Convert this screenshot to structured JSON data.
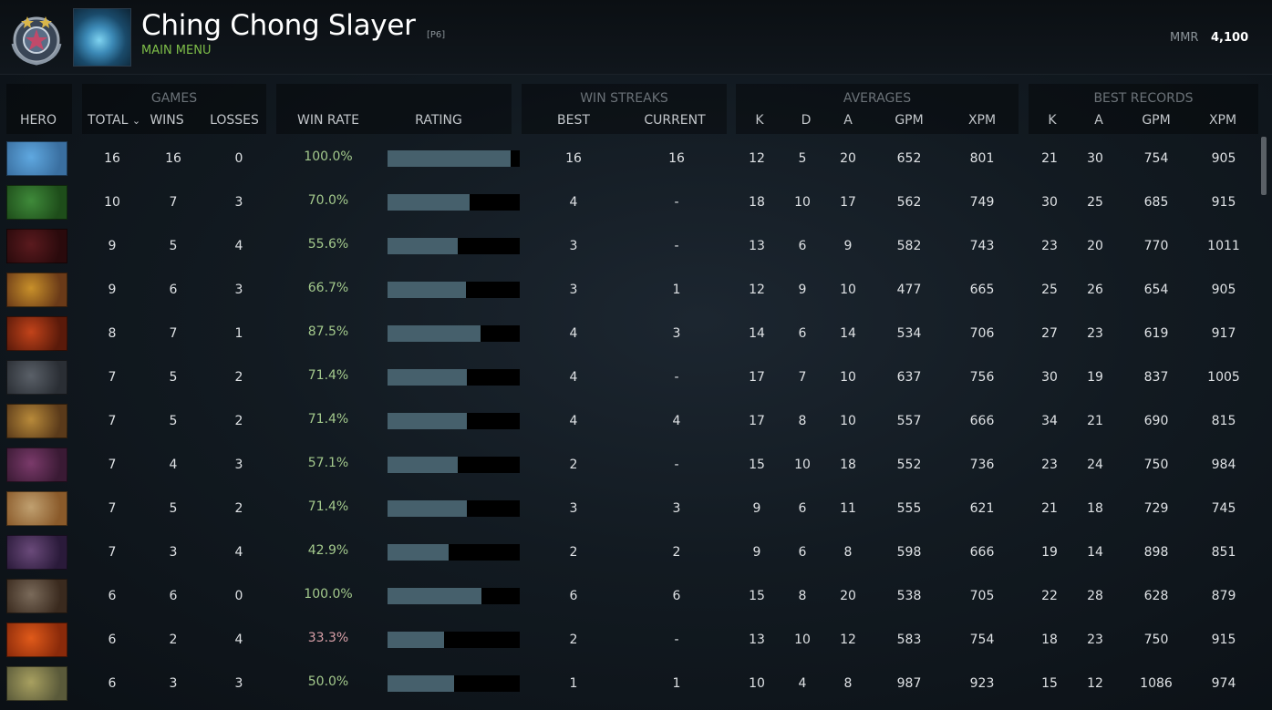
{
  "header": {
    "player_name": "Ching Chong Slayer",
    "player_tag": "[P6]",
    "main_menu": "MAIN MENU",
    "mmr_label": "MMR",
    "mmr_value": "4,100"
  },
  "groups": {
    "games": "GAMES",
    "win_streaks": "WIN STREAKS",
    "averages": "AVERAGES",
    "best_records": "BEST RECORDS"
  },
  "columns": {
    "hero": "HERO",
    "total": "TOTAL",
    "sort_icon": "⌄",
    "wins": "WINS",
    "losses": "LOSSES",
    "win_rate": "WIN RATE",
    "rating": "RATING",
    "best": "BEST",
    "current": "CURRENT",
    "avg_k": "K",
    "avg_d": "D",
    "avg_a": "A",
    "avg_gpm": "GPM",
    "avg_xpm": "XPM",
    "rec_k": "K",
    "rec_a": "A",
    "rec_gpm": "GPM",
    "rec_xpm": "XPM"
  },
  "colors": {
    "accent_green": "#7fbf49",
    "win_rate_good": "#a3c98c",
    "win_rate_bad": "#d9a0a8",
    "rating_bar": "#46606c"
  },
  "rows": [
    {
      "hero_icon": "hero-puck-icon",
      "total": "16",
      "wins": "16",
      "losses": "0",
      "win_rate": "100.0%",
      "rating": 0.93,
      "best": "16",
      "current": "16",
      "k": "12",
      "d": "5",
      "a": "20",
      "gpm": "652",
      "xpm": "801",
      "rk": "21",
      "ra": "30",
      "rgpm": "754",
      "rxpm": "905"
    },
    {
      "hero_icon": "hero-venomancer-icon",
      "total": "10",
      "wins": "7",
      "losses": "3",
      "win_rate": "70.0%",
      "rating": 0.62,
      "best": "4",
      "current": "-",
      "k": "18",
      "d": "10",
      "a": "17",
      "gpm": "562",
      "xpm": "749",
      "rk": "30",
      "ra": "25",
      "rgpm": "685",
      "rxpm": "915"
    },
    {
      "hero_icon": "hero-shadow-demon-icon",
      "total": "9",
      "wins": "5",
      "losses": "4",
      "win_rate": "55.6%",
      "rating": 0.53,
      "best": "3",
      "current": "-",
      "k": "13",
      "d": "6",
      "a": "9",
      "gpm": "582",
      "xpm": "743",
      "rk": "23",
      "ra": "20",
      "rgpm": "770",
      "rxpm": "1011"
    },
    {
      "hero_icon": "hero-dragon-knight-icon",
      "total": "9",
      "wins": "6",
      "losses": "3",
      "win_rate": "66.7%",
      "rating": 0.59,
      "best": "3",
      "current": "1",
      "k": "12",
      "d": "9",
      "a": "10",
      "gpm": "477",
      "xpm": "665",
      "rk": "25",
      "ra": "26",
      "rgpm": "654",
      "rxpm": "905"
    },
    {
      "hero_icon": "hero-ember-spirit-icon",
      "total": "8",
      "wins": "7",
      "losses": "1",
      "win_rate": "87.5%",
      "rating": 0.7,
      "best": "4",
      "current": "3",
      "k": "14",
      "d": "6",
      "a": "14",
      "gpm": "534",
      "xpm": "706",
      "rk": "27",
      "ra": "23",
      "rgpm": "619",
      "rxpm": "917"
    },
    {
      "hero_icon": "hero-ursa-icon",
      "total": "7",
      "wins": "5",
      "losses": "2",
      "win_rate": "71.4%",
      "rating": 0.6,
      "best": "4",
      "current": "-",
      "k": "17",
      "d": "7",
      "a": "10",
      "gpm": "637",
      "xpm": "756",
      "rk": "30",
      "ra": "19",
      "rgpm": "837",
      "rxpm": "1005"
    },
    {
      "hero_icon": "hero-monkey-king-icon",
      "total": "7",
      "wins": "5",
      "losses": "2",
      "win_rate": "71.4%",
      "rating": 0.6,
      "best": "4",
      "current": "4",
      "k": "17",
      "d": "8",
      "a": "10",
      "gpm": "557",
      "xpm": "666",
      "rk": "34",
      "ra": "21",
      "rgpm": "690",
      "rxpm": "815"
    },
    {
      "hero_icon": "hero-dark-seer-icon",
      "total": "7",
      "wins": "4",
      "losses": "3",
      "win_rate": "57.1%",
      "rating": 0.53,
      "best": "2",
      "current": "-",
      "k": "15",
      "d": "10",
      "a": "18",
      "gpm": "552",
      "xpm": "736",
      "rk": "23",
      "ra": "24",
      "rgpm": "750",
      "rxpm": "984"
    },
    {
      "hero_icon": "hero-batrider-icon",
      "total": "7",
      "wins": "5",
      "losses": "2",
      "win_rate": "71.4%",
      "rating": 0.6,
      "best": "3",
      "current": "3",
      "k": "9",
      "d": "6",
      "a": "11",
      "gpm": "555",
      "xpm": "621",
      "rk": "21",
      "ra": "18",
      "rgpm": "729",
      "rxpm": "745"
    },
    {
      "hero_icon": "hero-anti-mage-icon",
      "total": "7",
      "wins": "3",
      "losses": "4",
      "win_rate": "42.9%",
      "rating": 0.46,
      "best": "2",
      "current": "2",
      "k": "9",
      "d": "6",
      "a": "8",
      "gpm": "598",
      "xpm": "666",
      "rk": "19",
      "ra": "14",
      "rgpm": "898",
      "rxpm": "851"
    },
    {
      "hero_icon": "hero-brewmaster-icon",
      "total": "6",
      "wins": "6",
      "losses": "0",
      "win_rate": "100.0%",
      "rating": 0.71,
      "best": "6",
      "current": "6",
      "k": "15",
      "d": "8",
      "a": "20",
      "gpm": "538",
      "xpm": "705",
      "rk": "22",
      "ra": "28",
      "rgpm": "628",
      "rxpm": "879"
    },
    {
      "hero_icon": "hero-lina-icon",
      "total": "6",
      "wins": "2",
      "losses": "4",
      "win_rate": "33.3%",
      "rating": 0.43,
      "best": "2",
      "current": "-",
      "k": "13",
      "d": "10",
      "a": "12",
      "gpm": "583",
      "xpm": "754",
      "rk": "18",
      "ra": "23",
      "rgpm": "750",
      "rxpm": "915"
    },
    {
      "hero_icon": "hero-alchemist-icon",
      "total": "6",
      "wins": "3",
      "losses": "3",
      "win_rate": "50.0%",
      "rating": 0.5,
      "best": "1",
      "current": "1",
      "k": "10",
      "d": "4",
      "a": "8",
      "gpm": "987",
      "xpm": "923",
      "rk": "15",
      "ra": "12",
      "rgpm": "1086",
      "rxpm": "974"
    }
  ]
}
